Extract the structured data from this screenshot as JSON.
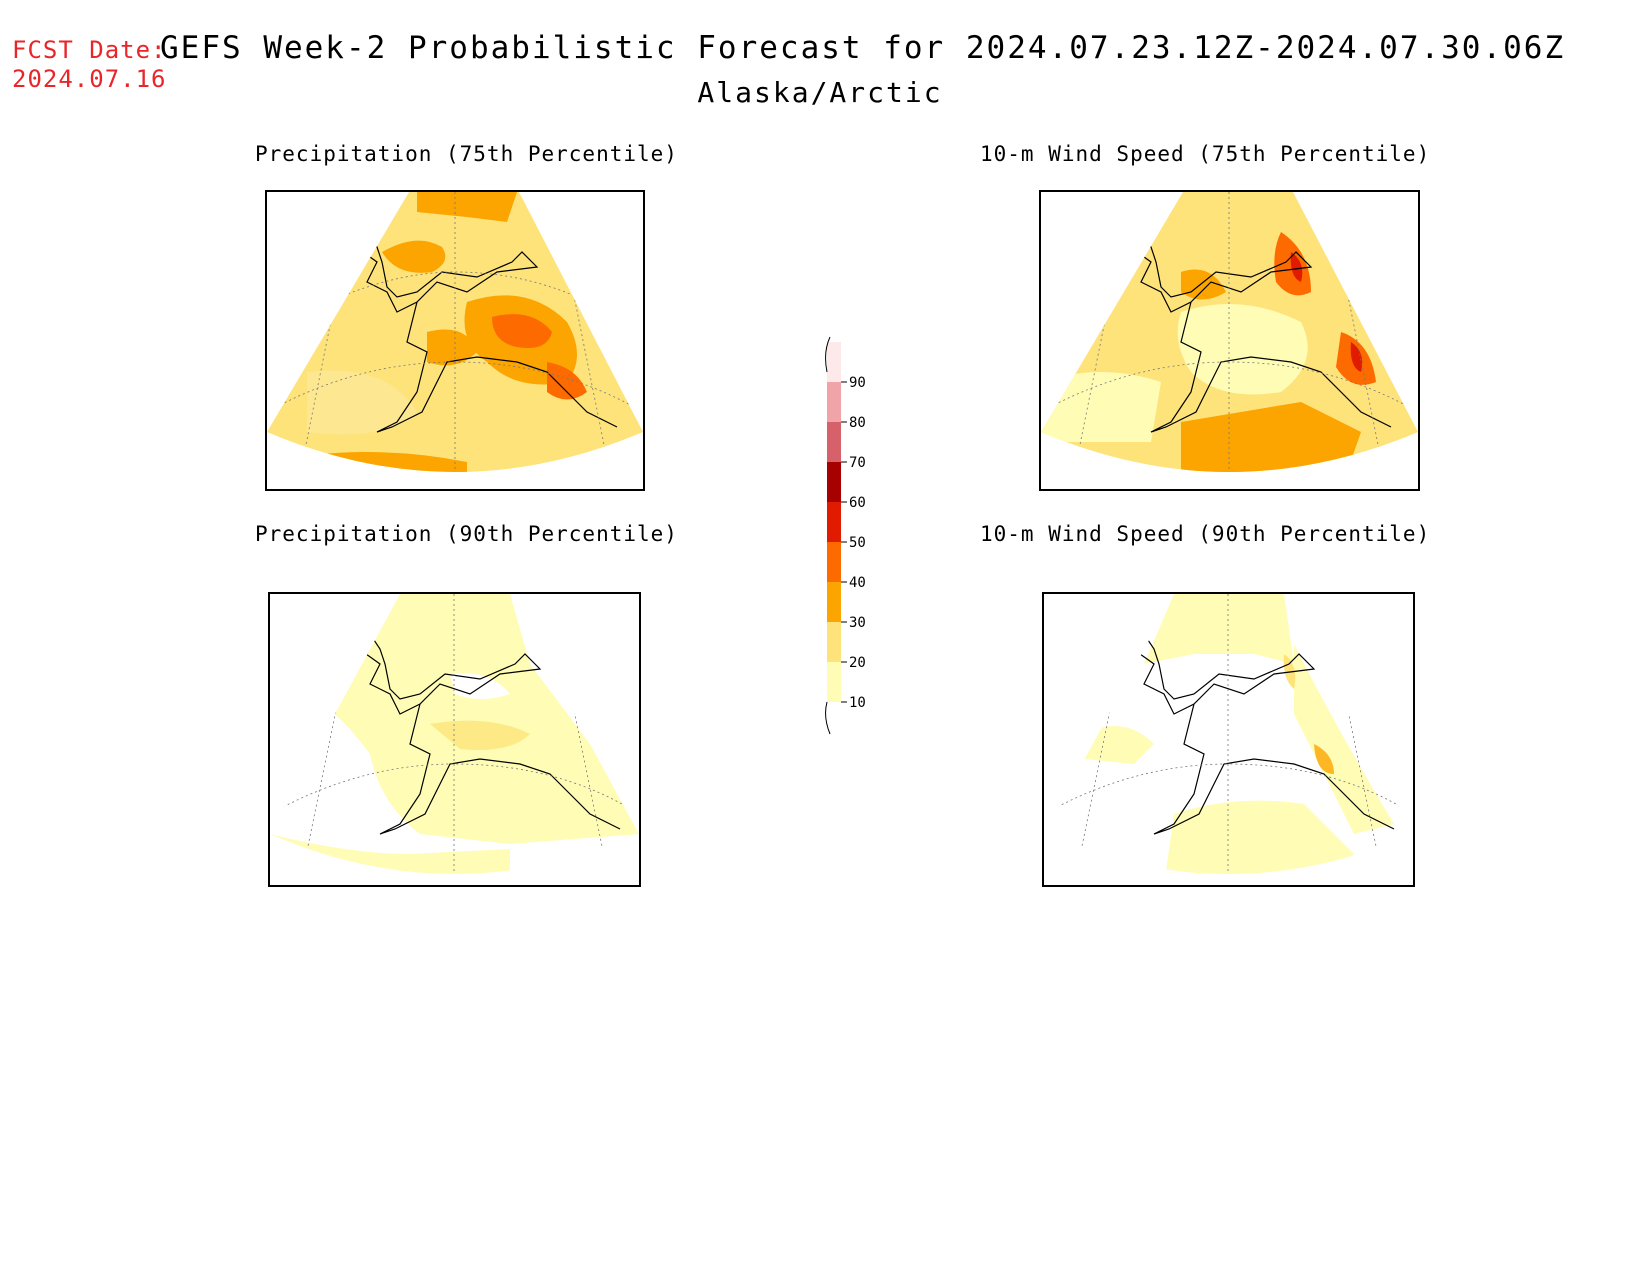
{
  "header": {
    "fcst_label": "FCST Date:",
    "fcst_date": "2024.07.16",
    "title": "GEFS Week-2 Probabilistic Forecast for 2024.07.23.12Z-2024.07.30.06Z",
    "subtitle": "Alaska/Arctic"
  },
  "colors": {
    "fcst_text": "#e8262a",
    "scale": [
      "#fffcb5",
      "#fde37a",
      "#fca400",
      "#fd6a00",
      "#e01b00",
      "#a60000",
      "#d7616a",
      "#f1a4a8",
      "#fde9ea"
    ]
  },
  "colorbar": {
    "levels": [
      "10",
      "20",
      "30",
      "40",
      "50",
      "60",
      "70",
      "80",
      "90"
    ]
  },
  "panels": [
    {
      "title": "Precipitation (75th Percentile)",
      "variable": "precipitation",
      "percentile": "75th",
      "dominant_category": "20-30",
      "max_category": "40-50"
    },
    {
      "title": "10-m Wind Speed (75th Percentile)",
      "variable": "10-m wind speed",
      "percentile": "75th",
      "dominant_category": "20-30",
      "max_category": "50-60"
    },
    {
      "title": "Precipitation (90th Percentile)",
      "variable": "precipitation",
      "percentile": "90th",
      "dominant_category": "10-20",
      "max_category": "20-30"
    },
    {
      "title": "10-m Wind Speed (90th Percentile)",
      "variable": "10-m wind speed",
      "percentile": "90th",
      "dominant_category": "10-20",
      "max_category": "30-40"
    }
  ]
}
